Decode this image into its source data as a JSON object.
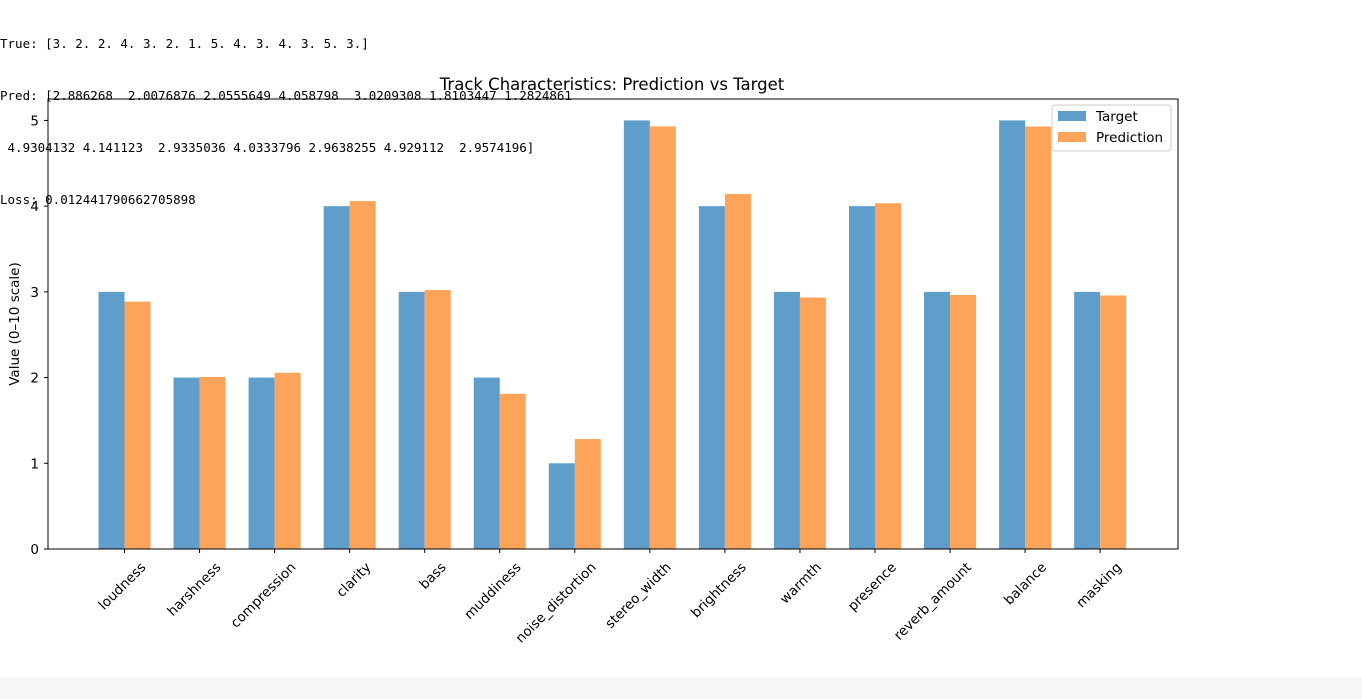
{
  "console_lines": [
    "True: [3. 2. 2. 4. 3. 2. 1. 5. 4. 3. 4. 3. 5. 3.]",
    "Pred: [2.886268  2.0076876 2.0555649 4.058798  3.0209308 1.8103447 1.2824861",
    " 4.9304132 4.141123  2.9335036 4.0333796 2.9638255 4.929112  2.9574196]",
    "Loss: 0.012441790662705898"
  ],
  "chart_data": {
    "type": "bar",
    "title": "Track Characteristics: Prediction vs Target",
    "xlabel": "",
    "ylabel": "Value (0–10 scale)",
    "ylim": [
      0,
      5.25
    ],
    "yticks": [
      0,
      1,
      2,
      3,
      4,
      5
    ],
    "grid": false,
    "legend_position": "top-right",
    "categories": [
      "loudness",
      "harshness",
      "compression",
      "clarity",
      "bass",
      "muddiness",
      "noise_distortion",
      "stereo_width",
      "brightness",
      "warmth",
      "presence",
      "reverb_amount",
      "balance",
      "masking"
    ],
    "series": [
      {
        "name": "Target",
        "color": "#5f9ecb",
        "values": [
          3,
          2,
          2,
          4,
          3,
          2,
          1,
          5,
          4,
          3,
          4,
          3,
          5,
          3
        ]
      },
      {
        "name": "Prediction",
        "color": "#fea45a",
        "values": [
          2.886268,
          2.0076876,
          2.0555649,
          4.058798,
          3.0209308,
          1.8103447,
          1.2824861,
          4.9304132,
          4.141123,
          2.9335036,
          4.0333796,
          2.9638255,
          4.929112,
          2.9574196
        ]
      }
    ]
  }
}
